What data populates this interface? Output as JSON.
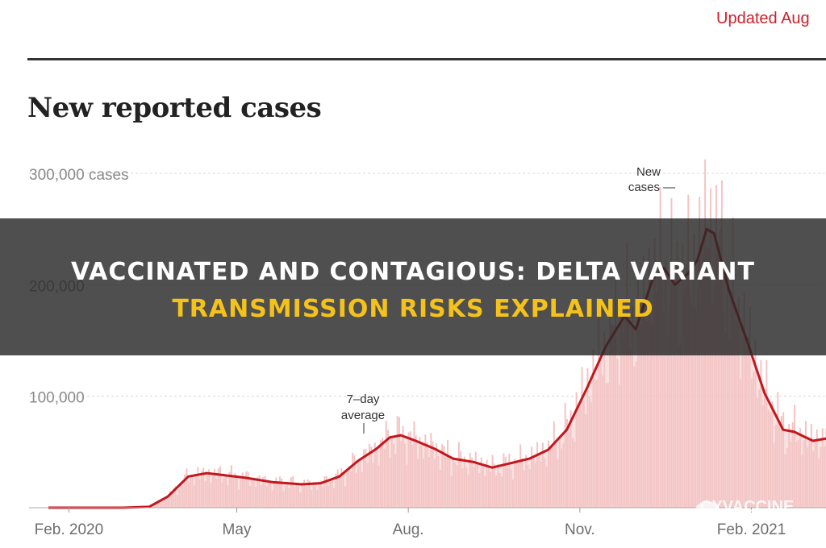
{
  "header": {
    "updated_label": "Updated Aug"
  },
  "chart_data": {
    "type": "area",
    "title": "New reported cases",
    "y_tick_labels": [
      "300,000 cases",
      "200,000",
      "100,000"
    ],
    "y_ticks": [
      300000,
      200000,
      100000
    ],
    "ylim": [
      0,
      300000
    ],
    "x_tick_labels": [
      "Feb. 2020",
      "May",
      "Aug.",
      "Nov.",
      "Feb. 2021"
    ],
    "x_ticks": [
      "2020-02-01",
      "2020-05-01",
      "2020-08-01",
      "2020-11-01",
      "2021-02-01"
    ],
    "xlim": [
      "2020-01-21",
      "2021-03-13"
    ],
    "grid": "horizontal dashed",
    "series": [
      {
        "name": "New cases",
        "style": "bars",
        "color": "#f3b1b1"
      },
      {
        "name": "7-day average",
        "style": "line",
        "color": "#c4161c"
      }
    ],
    "annotations": [
      {
        "text": [
          "New",
          "cases —"
        ]
      },
      {
        "text": [
          "7–day",
          "average"
        ]
      }
    ],
    "seven_day_average": [
      [
        "2020-01-21",
        0
      ],
      [
        "2020-03-01",
        0
      ],
      [
        "2020-03-15",
        800
      ],
      [
        "2020-03-25",
        10000
      ],
      [
        "2020-04-05",
        28000
      ],
      [
        "2020-04-15",
        31000
      ],
      [
        "2020-04-25",
        29000
      ],
      [
        "2020-05-05",
        27000
      ],
      [
        "2020-05-20",
        23000
      ],
      [
        "2020-06-05",
        21000
      ],
      [
        "2020-06-15",
        22000
      ],
      [
        "2020-06-25",
        28000
      ],
      [
        "2020-07-05",
        42000
      ],
      [
        "2020-07-15",
        53000
      ],
      [
        "2020-07-22",
        63000
      ],
      [
        "2020-07-28",
        65000
      ],
      [
        "2020-08-05",
        60000
      ],
      [
        "2020-08-15",
        53000
      ],
      [
        "2020-08-25",
        44000
      ],
      [
        "2020-09-05",
        41000
      ],
      [
        "2020-09-15",
        36000
      ],
      [
        "2020-09-25",
        40000
      ],
      [
        "2020-10-05",
        44000
      ],
      [
        "2020-10-15",
        52000
      ],
      [
        "2020-10-25",
        70000
      ],
      [
        "2020-11-05",
        108000
      ],
      [
        "2020-11-15",
        145000
      ],
      [
        "2020-11-25",
        172000
      ],
      [
        "2020-12-01",
        160000
      ],
      [
        "2020-12-10",
        205000
      ],
      [
        "2020-12-16",
        215000
      ],
      [
        "2020-12-22",
        200000
      ],
      [
        "2020-12-29",
        210000
      ],
      [
        "2021-01-03",
        222000
      ],
      [
        "2021-01-08",
        250000
      ],
      [
        "2021-01-12",
        246000
      ],
      [
        "2021-01-20",
        195000
      ],
      [
        "2021-01-30",
        148000
      ],
      [
        "2021-02-08",
        103000
      ],
      [
        "2021-02-18",
        70000
      ],
      [
        "2021-02-24",
        68000
      ],
      [
        "2021-03-01",
        64000
      ],
      [
        "2021-03-06",
        60000
      ],
      [
        "2021-03-13",
        62000
      ]
    ]
  },
  "overlay": {
    "line1": "VACCINATED AND CONTAGIOUS: DELTA VARIANT",
    "line2": "TRANSMISSION RISKS EXPLAINED"
  },
  "watermark": {
    "text": "CYVACCINE"
  }
}
